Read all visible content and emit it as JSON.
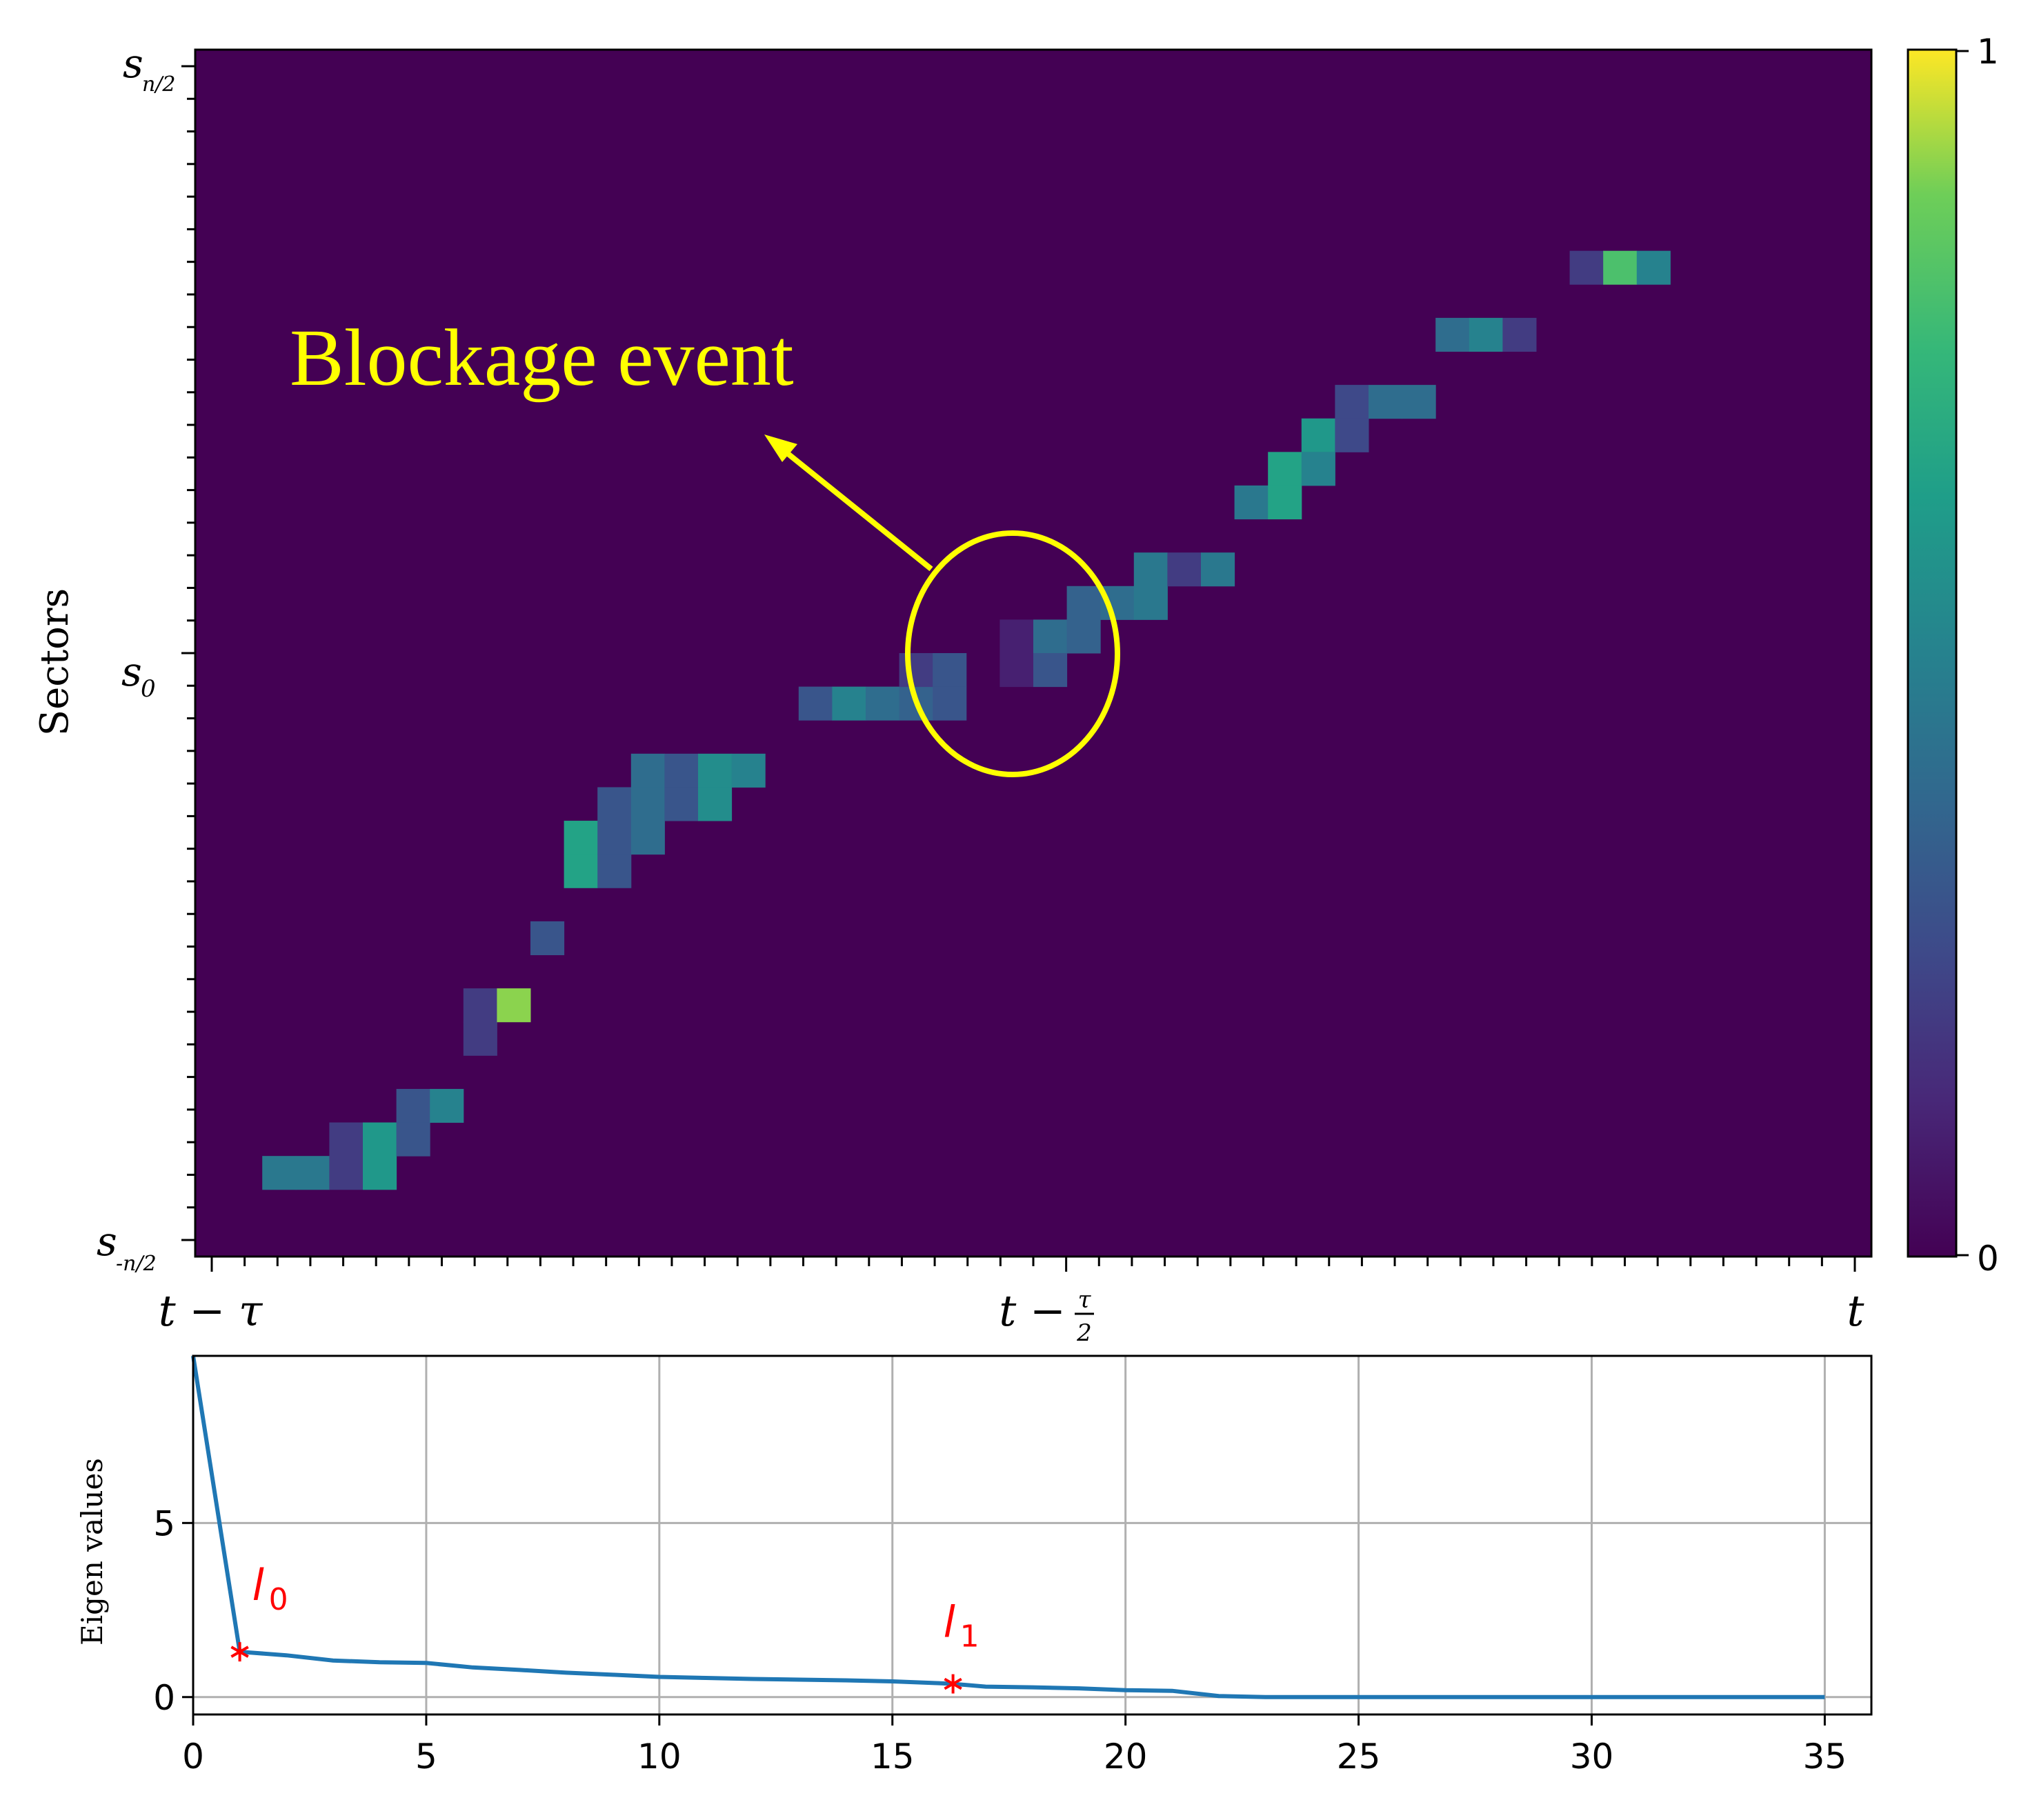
{
  "chart_data": [
    {
      "type": "heatmap",
      "ylabel": "Sectors",
      "y_tick_labels": [
        {
          "base": "s",
          "sub": "n/2"
        },
        {
          "base": "s",
          "sub": "0"
        },
        {
          "base": "s",
          "sub": "-n/2"
        }
      ],
      "x_tick_labels": [
        {
          "text": "t − τ"
        },
        {
          "text": "t −",
          "frac_num": "τ",
          "frac_den": "2"
        },
        {
          "text": "t"
        }
      ],
      "n_cols": 50,
      "n_rows": 36,
      "colorbar": {
        "min": 0,
        "max": 1,
        "min_label": "0",
        "max_label": "1",
        "colormap": "viridis"
      },
      "cells": [
        {
          "col": 2,
          "row": 33,
          "v": 0.45
        },
        {
          "col": 3,
          "row": 33,
          "v": 0.45
        },
        {
          "col": 4,
          "row": 33,
          "v": 0.2
        },
        {
          "col": 4,
          "row": 32,
          "v": 0.2
        },
        {
          "col": 5,
          "row": 32,
          "v": 0.6
        },
        {
          "col": 5,
          "row": 33,
          "v": 0.6
        },
        {
          "col": 6,
          "row": 31,
          "v": 0.3
        },
        {
          "col": 6,
          "row": 32,
          "v": 0.3
        },
        {
          "col": 7,
          "row": 31,
          "v": 0.5
        },
        {
          "col": 8,
          "row": 28,
          "v": 0.2
        },
        {
          "col": 8,
          "row": 29,
          "v": 0.2
        },
        {
          "col": 9,
          "row": 28,
          "v": 0.9
        },
        {
          "col": 10,
          "row": 26,
          "v": 0.3
        },
        {
          "col": 11,
          "row": 23,
          "v": 0.65
        },
        {
          "col": 11,
          "row": 24,
          "v": 0.65
        },
        {
          "col": 12,
          "row": 22,
          "v": 0.3
        },
        {
          "col": 12,
          "row": 23,
          "v": 0.3
        },
        {
          "col": 12,
          "row": 24,
          "v": 0.3
        },
        {
          "col": 13,
          "row": 21,
          "v": 0.4
        },
        {
          "col": 13,
          "row": 22,
          "v": 0.4
        },
        {
          "col": 13,
          "row": 23,
          "v": 0.4
        },
        {
          "col": 14,
          "row": 21,
          "v": 0.3
        },
        {
          "col": 14,
          "row": 22,
          "v": 0.3
        },
        {
          "col": 15,
          "row": 21,
          "v": 0.55
        },
        {
          "col": 15,
          "row": 22,
          "v": 0.55
        },
        {
          "col": 16,
          "row": 21,
          "v": 0.5
        },
        {
          "col": 18,
          "row": 19,
          "v": 0.3
        },
        {
          "col": 19,
          "row": 19,
          "v": 0.5
        },
        {
          "col": 20,
          "row": 19,
          "v": 0.4
        },
        {
          "col": 21,
          "row": 19,
          "v": 0.35
        },
        {
          "col": 21,
          "row": 18,
          "v": 0.2
        },
        {
          "col": 22,
          "row": 18,
          "v": 0.3
        },
        {
          "col": 22,
          "row": 19,
          "v": 0.3
        },
        {
          "col": 24,
          "row": 17,
          "v": 0.1
        },
        {
          "col": 24,
          "row": 18,
          "v": 0.1
        },
        {
          "col": 25,
          "row": 17,
          "v": 0.4
        },
        {
          "col": 25,
          "row": 18,
          "v": 0.3
        },
        {
          "col": 26,
          "row": 17,
          "v": 0.35
        },
        {
          "col": 26,
          "row": 16,
          "v": 0.35
        },
        {
          "col": 27,
          "row": 16,
          "v": 0.4
        },
        {
          "col": 28,
          "row": 16,
          "v": 0.45
        },
        {
          "col": 28,
          "row": 15,
          "v": 0.45
        },
        {
          "col": 29,
          "row": 15,
          "v": 0.2
        },
        {
          "col": 30,
          "row": 15,
          "v": 0.45
        },
        {
          "col": 31,
          "row": 13,
          "v": 0.45
        },
        {
          "col": 32,
          "row": 12,
          "v": 0.65
        },
        {
          "col": 32,
          "row": 13,
          "v": 0.65
        },
        {
          "col": 33,
          "row": 11,
          "v": 0.6
        },
        {
          "col": 33,
          "row": 12,
          "v": 0.5
        },
        {
          "col": 34,
          "row": 10,
          "v": 0.25
        },
        {
          "col": 34,
          "row": 11,
          "v": 0.25
        },
        {
          "col": 35,
          "row": 10,
          "v": 0.4
        },
        {
          "col": 36,
          "row": 10,
          "v": 0.4
        },
        {
          "col": 37,
          "row": 8,
          "v": 0.4
        },
        {
          "col": 38,
          "row": 8,
          "v": 0.5
        },
        {
          "col": 39,
          "row": 8,
          "v": 0.2
        },
        {
          "col": 41,
          "row": 6,
          "v": 0.2
        },
        {
          "col": 42,
          "row": 6,
          "v": 0.8
        },
        {
          "col": 43,
          "row": 6,
          "v": 0.5
        }
      ]
    },
    {
      "type": "line",
      "ylabel": "Eigen values",
      "xlim": [
        0,
        36
      ],
      "ylim": [
        -0.5,
        9.8
      ],
      "x_ticks": [
        0,
        5,
        10,
        15,
        20,
        25,
        30,
        35
      ],
      "y_ticks": [
        0,
        5
      ],
      "grid": true,
      "series": [
        {
          "color": "#1f77b4",
          "x": [
            0,
            1,
            2,
            3,
            4,
            5,
            6,
            7,
            8,
            9,
            10,
            11,
            12,
            13,
            14,
            15,
            16,
            16.3,
            17,
            18,
            19,
            20,
            21,
            22,
            23,
            24,
            25,
            26,
            27,
            28,
            29,
            30,
            31,
            32,
            33,
            34,
            35
          ],
          "y": [
            9.8,
            1.3,
            1.2,
            1.05,
            1.0,
            0.98,
            0.85,
            0.78,
            0.7,
            0.64,
            0.58,
            0.55,
            0.52,
            0.5,
            0.48,
            0.45,
            0.4,
            0.38,
            0.3,
            0.28,
            0.25,
            0.2,
            0.18,
            0.03,
            0.0,
            0.0,
            0.0,
            0.0,
            0.0,
            0.0,
            0.0,
            0.0,
            0.0,
            0.0,
            0.0,
            0.0,
            0.0
          ]
        }
      ],
      "markers": [
        {
          "x": 1,
          "y": 1.3,
          "label_base": "l",
          "label_sub": "0"
        },
        {
          "x": 16.3,
          "y": 0.38,
          "label_base": "l",
          "label_sub": "1"
        }
      ]
    }
  ],
  "annotation": {
    "text": "Blockage event",
    "color": "#ffff00"
  },
  "colors": {
    "heatmap_bg": "#440154",
    "line": "#1f77b4",
    "marker": "#ff0000",
    "annotation": "#ffff00",
    "grid": "#b0b0b0"
  }
}
